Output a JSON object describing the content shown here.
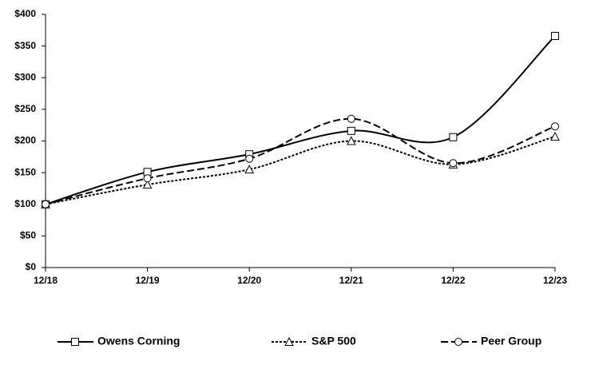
{
  "chart_data": {
    "type": "line",
    "categories": [
      "12/18",
      "12/19",
      "12/20",
      "12/21",
      "12/22",
      "12/23"
    ],
    "series": [
      {
        "name": "Owens Corning",
        "color": "#000000",
        "line_style": "solid",
        "marker": "square",
        "values": [
          100,
          151,
          179,
          216,
          206,
          366
        ]
      },
      {
        "name": "S&P 500",
        "color": "#000000",
        "line_style": "dotted",
        "marker": "triangle",
        "values": [
          100,
          131,
          155,
          200,
          163,
          207
        ]
      },
      {
        "name": "Peer Group",
        "color": "#000000",
        "line_style": "dashed",
        "marker": "circle",
        "values": [
          100,
          141,
          172,
          235,
          165,
          223
        ]
      }
    ],
    "ylim": [
      0,
      400
    ],
    "yticks": [
      {
        "value": 0,
        "label": "$0"
      },
      {
        "value": 50,
        "label": "$50"
      },
      {
        "value": 100,
        "label": "$100"
      },
      {
        "value": 150,
        "label": "$150"
      },
      {
        "value": 200,
        "label": "$200"
      },
      {
        "value": 250,
        "label": "$250"
      },
      {
        "value": 300,
        "label": "$300"
      },
      {
        "value": 350,
        "label": "$350"
      },
      {
        "value": 400,
        "label": "$400"
      }
    ],
    "grid": false,
    "smooth": true,
    "legend": "bottom"
  }
}
